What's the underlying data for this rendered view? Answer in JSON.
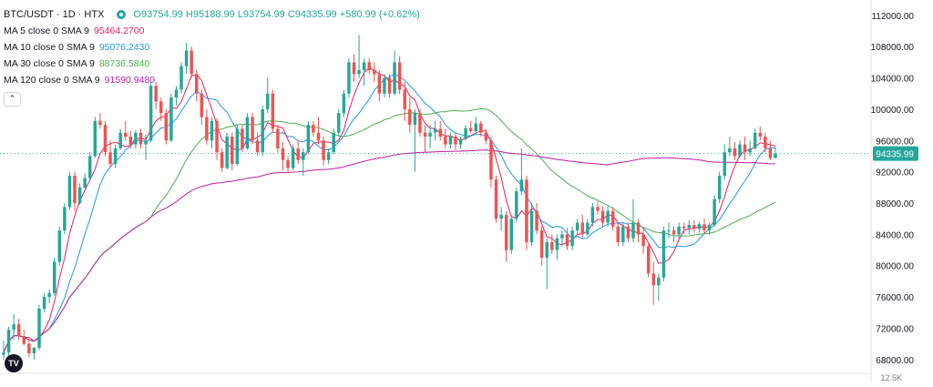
{
  "header": {
    "symbol": "BTC/USDT · 1D · HTX",
    "ohlc": "O93754.99 H95188.99 L93754.99 C94335.99 +580.99 (+0.62%)"
  },
  "indicators": [
    {
      "label": "MA 5 close 0 SMA 9",
      "value": "95464.2700",
      "color": "#e91e63"
    },
    {
      "label": "MA 10 close 0 SMA 9",
      "value": "95076.2430",
      "color": "#2196f3"
    },
    {
      "label": "MA 30 close 0 SMA 9",
      "value": "88736.5840",
      "color": "#4caf50"
    },
    {
      "label": "MA 120 close 0 SMA 9",
      "value": "91590.9480",
      "color": "#ba1fa3"
    }
  ],
  "collapse_icon": "chevron-up-icon",
  "logo_text": "TV",
  "price_label": "94335.99",
  "bottom_axis_label": "12.5K",
  "colors": {
    "up": "#26a69a",
    "down": "#ef5350",
    "ma5": "#e91e63",
    "ma10": "#2196f3",
    "ma30": "#4caf50",
    "ma120": "#ba1fa3",
    "price_line": "#26a69a"
  },
  "chart_data": {
    "type": "candlestick",
    "y_axis": {
      "ticks": [
        68000,
        72000,
        76000,
        80000,
        84000,
        88000,
        92000,
        96000,
        100000,
        104000,
        108000,
        112000
      ],
      "tick_labels": [
        "68000.00",
        "72000.00",
        "76000.00",
        "80000.00",
        "84000.00",
        "88000.00",
        "92000.00",
        "96000.00",
        "100000.00",
        "104000.00",
        "108000.00",
        "112000.00"
      ],
      "range": [
        66000,
        113500
      ],
      "grid": false
    },
    "last_close": 94335.99,
    "candles": [
      {
        "o": 68600,
        "h": 70400,
        "l": 68000,
        "c": 68900
      },
      {
        "o": 68900,
        "h": 72200,
        "l": 68500,
        "c": 71800
      },
      {
        "o": 71800,
        "h": 73800,
        "l": 70600,
        "c": 72500
      },
      {
        "o": 72500,
        "h": 73200,
        "l": 70500,
        "c": 71000
      },
      {
        "o": 71000,
        "h": 71800,
        "l": 69800,
        "c": 70000
      },
      {
        "o": 70000,
        "h": 70500,
        "l": 68300,
        "c": 68800
      },
      {
        "o": 68800,
        "h": 69600,
        "l": 68000,
        "c": 69500
      },
      {
        "o": 69500,
        "h": 75000,
        "l": 69200,
        "c": 74500
      },
      {
        "o": 74500,
        "h": 76500,
        "l": 74000,
        "c": 76000
      },
      {
        "o": 76000,
        "h": 77000,
        "l": 75200,
        "c": 76500
      },
      {
        "o": 76500,
        "h": 81000,
        "l": 76200,
        "c": 80500
      },
      {
        "o": 80500,
        "h": 85000,
        "l": 80000,
        "c": 84500
      },
      {
        "o": 84500,
        "h": 88000,
        "l": 84000,
        "c": 87500
      },
      {
        "o": 87500,
        "h": 92000,
        "l": 87200,
        "c": 91500
      },
      {
        "o": 91500,
        "h": 92000,
        "l": 87000,
        "c": 88000
      },
      {
        "o": 88000,
        "h": 90500,
        "l": 87800,
        "c": 90000
      },
      {
        "o": 90000,
        "h": 91800,
        "l": 89800,
        "c": 91200
      },
      {
        "o": 91200,
        "h": 94500,
        "l": 91000,
        "c": 94000
      },
      {
        "o": 94000,
        "h": 99000,
        "l": 93800,
        "c": 98500
      },
      {
        "o": 98500,
        "h": 99500,
        "l": 97500,
        "c": 98000
      },
      {
        "o": 98000,
        "h": 98500,
        "l": 94000,
        "c": 94500
      },
      {
        "o": 94500,
        "h": 96000,
        "l": 92500,
        "c": 93000
      },
      {
        "o": 93000,
        "h": 95500,
        "l": 92500,
        "c": 95000
      },
      {
        "o": 95000,
        "h": 97500,
        "l": 94800,
        "c": 97000
      },
      {
        "o": 97000,
        "h": 98500,
        "l": 96000,
        "c": 96500
      },
      {
        "o": 96500,
        "h": 97200,
        "l": 95000,
        "c": 95500
      },
      {
        "o": 95500,
        "h": 97300,
        "l": 95000,
        "c": 97000
      },
      {
        "o": 97000,
        "h": 97500,
        "l": 95000,
        "c": 95500
      },
      {
        "o": 95500,
        "h": 96800,
        "l": 93500,
        "c": 96000
      },
      {
        "o": 96000,
        "h": 103500,
        "l": 95800,
        "c": 103000
      },
      {
        "o": 103000,
        "h": 103500,
        "l": 100000,
        "c": 101000
      },
      {
        "o": 101000,
        "h": 101500,
        "l": 98500,
        "c": 99500
      },
      {
        "o": 99500,
        "h": 100000,
        "l": 95500,
        "c": 96000
      },
      {
        "o": 96000,
        "h": 102000,
        "l": 95800,
        "c": 101500
      },
      {
        "o": 101500,
        "h": 103000,
        "l": 100500,
        "c": 102500
      },
      {
        "o": 102500,
        "h": 106000,
        "l": 102000,
        "c": 105500
      },
      {
        "o": 105500,
        "h": 108500,
        "l": 104500,
        "c": 107500
      },
      {
        "o": 107500,
        "h": 108000,
        "l": 104000,
        "c": 104500
      },
      {
        "o": 104500,
        "h": 105000,
        "l": 101000,
        "c": 102000
      },
      {
        "o": 102000,
        "h": 102500,
        "l": 98000,
        "c": 99000
      },
      {
        "o": 99000,
        "h": 100000,
        "l": 95500,
        "c": 96000
      },
      {
        "o": 96000,
        "h": 99000,
        "l": 95000,
        "c": 98500
      },
      {
        "o": 98500,
        "h": 98800,
        "l": 93500,
        "c": 94500
      },
      {
        "o": 94500,
        "h": 95000,
        "l": 92000,
        "c": 92500
      },
      {
        "o": 92500,
        "h": 97000,
        "l": 92300,
        "c": 96500
      },
      {
        "o": 96500,
        "h": 97000,
        "l": 92200,
        "c": 93000
      },
      {
        "o": 93000,
        "h": 98000,
        "l": 92800,
        "c": 97500
      },
      {
        "o": 97500,
        "h": 98000,
        "l": 94500,
        "c": 95000
      },
      {
        "o": 95000,
        "h": 99500,
        "l": 94800,
        "c": 99000
      },
      {
        "o": 99000,
        "h": 99500,
        "l": 95500,
        "c": 96000
      },
      {
        "o": 96000,
        "h": 97000,
        "l": 94000,
        "c": 94500
      },
      {
        "o": 94500,
        "h": 100500,
        "l": 94000,
        "c": 100000
      },
      {
        "o": 100000,
        "h": 104000,
        "l": 99500,
        "c": 102000
      },
      {
        "o": 102000,
        "h": 102500,
        "l": 97000,
        "c": 97500
      },
      {
        "o": 97500,
        "h": 98000,
        "l": 94500,
        "c": 95000
      },
      {
        "o": 95000,
        "h": 95800,
        "l": 92200,
        "c": 93500
      },
      {
        "o": 93500,
        "h": 94000,
        "l": 91800,
        "c": 92500
      },
      {
        "o": 92500,
        "h": 95500,
        "l": 92200,
        "c": 95000
      },
      {
        "o": 95000,
        "h": 96000,
        "l": 93000,
        "c": 93500
      },
      {
        "o": 93500,
        "h": 95000,
        "l": 91500,
        "c": 94500
      },
      {
        "o": 94500,
        "h": 98500,
        "l": 94200,
        "c": 98000
      },
      {
        "o": 98000,
        "h": 98500,
        "l": 96500,
        "c": 97000
      },
      {
        "o": 97000,
        "h": 99000,
        "l": 95500,
        "c": 96000
      },
      {
        "o": 96000,
        "h": 96500,
        "l": 92800,
        "c": 93500
      },
      {
        "o": 93500,
        "h": 95000,
        "l": 93000,
        "c": 94500
      },
      {
        "o": 94500,
        "h": 97500,
        "l": 94200,
        "c": 97000
      },
      {
        "o": 97000,
        "h": 100000,
        "l": 96500,
        "c": 99500
      },
      {
        "o": 99500,
        "h": 102500,
        "l": 99000,
        "c": 102000
      },
      {
        "o": 102000,
        "h": 106500,
        "l": 101500,
        "c": 106000
      },
      {
        "o": 106000,
        "h": 107000,
        "l": 103500,
        "c": 104500
      },
      {
        "o": 104500,
        "h": 109500,
        "l": 104000,
        "c": 105000
      },
      {
        "o": 105000,
        "h": 106500,
        "l": 103000,
        "c": 106000
      },
      {
        "o": 106000,
        "h": 106500,
        "l": 104500,
        "c": 105000
      },
      {
        "o": 105000,
        "h": 106000,
        "l": 103500,
        "c": 104500
      },
      {
        "o": 104500,
        "h": 105000,
        "l": 101000,
        "c": 102000
      },
      {
        "o": 102000,
        "h": 104500,
        "l": 101500,
        "c": 104000
      },
      {
        "o": 104000,
        "h": 104500,
        "l": 101500,
        "c": 102000
      },
      {
        "o": 102000,
        "h": 107500,
        "l": 101800,
        "c": 106000
      },
      {
        "o": 106000,
        "h": 106800,
        "l": 102000,
        "c": 102500
      },
      {
        "o": 102500,
        "h": 103500,
        "l": 98500,
        "c": 100000
      },
      {
        "o": 100000,
        "h": 101500,
        "l": 97000,
        "c": 98000
      },
      {
        "o": 98000,
        "h": 100000,
        "l": 92000,
        "c": 99500
      },
      {
        "o": 99500,
        "h": 100000,
        "l": 96500,
        "c": 97000
      },
      {
        "o": 97000,
        "h": 98000,
        "l": 94500,
        "c": 96500
      },
      {
        "o": 96500,
        "h": 98000,
        "l": 95000,
        "c": 97000
      },
      {
        "o": 97000,
        "h": 98500,
        "l": 96000,
        "c": 97500
      },
      {
        "o": 97500,
        "h": 98500,
        "l": 96000,
        "c": 96500
      },
      {
        "o": 96500,
        "h": 97500,
        "l": 95000,
        "c": 95500
      },
      {
        "o": 95500,
        "h": 97000,
        "l": 95000,
        "c": 96500
      },
      {
        "o": 96500,
        "h": 97000,
        "l": 94800,
        "c": 95500
      },
      {
        "o": 95500,
        "h": 96500,
        "l": 95000,
        "c": 96200
      },
      {
        "o": 96200,
        "h": 98000,
        "l": 96000,
        "c": 97600
      },
      {
        "o": 97600,
        "h": 98500,
        "l": 97000,
        "c": 97200
      },
      {
        "o": 97200,
        "h": 99000,
        "l": 96800,
        "c": 98200
      },
      {
        "o": 98200,
        "h": 98500,
        "l": 96500,
        "c": 97000
      },
      {
        "o": 97000,
        "h": 97500,
        "l": 95500,
        "c": 96000
      },
      {
        "o": 96000,
        "h": 96500,
        "l": 90000,
        "c": 91000
      },
      {
        "o": 91000,
        "h": 91500,
        "l": 85500,
        "c": 86000
      },
      {
        "o": 86000,
        "h": 87500,
        "l": 84500,
        "c": 86500
      },
      {
        "o": 86500,
        "h": 87000,
        "l": 80500,
        "c": 82000
      },
      {
        "o": 82000,
        "h": 86500,
        "l": 81500,
        "c": 86000
      },
      {
        "o": 86000,
        "h": 90000,
        "l": 85500,
        "c": 89500
      },
      {
        "o": 89500,
        "h": 95000,
        "l": 89000,
        "c": 91000
      },
      {
        "o": 91000,
        "h": 91500,
        "l": 82000,
        "c": 83000
      },
      {
        "o": 83000,
        "h": 88000,
        "l": 82500,
        "c": 87000
      },
      {
        "o": 87000,
        "h": 88000,
        "l": 84000,
        "c": 84500
      },
      {
        "o": 84500,
        "h": 85000,
        "l": 80000,
        "c": 81000
      },
      {
        "o": 81000,
        "h": 83500,
        "l": 77000,
        "c": 83000
      },
      {
        "o": 83000,
        "h": 84000,
        "l": 81500,
        "c": 82000
      },
      {
        "o": 82000,
        "h": 84000,
        "l": 80800,
        "c": 83500
      },
      {
        "o": 83500,
        "h": 84500,
        "l": 82500,
        "c": 84000
      },
      {
        "o": 84000,
        "h": 84800,
        "l": 82000,
        "c": 82500
      },
      {
        "o": 82500,
        "h": 85000,
        "l": 82000,
        "c": 84500
      },
      {
        "o": 84500,
        "h": 86000,
        "l": 84000,
        "c": 85500
      },
      {
        "o": 85500,
        "h": 86500,
        "l": 83500,
        "c": 84000
      },
      {
        "o": 84000,
        "h": 86000,
        "l": 83800,
        "c": 85500
      },
      {
        "o": 85500,
        "h": 88000,
        "l": 85000,
        "c": 87500
      },
      {
        "o": 87500,
        "h": 88200,
        "l": 86500,
        "c": 87000
      },
      {
        "o": 87000,
        "h": 87600,
        "l": 85000,
        "c": 85500
      },
      {
        "o": 85500,
        "h": 87600,
        "l": 85000,
        "c": 87000
      },
      {
        "o": 87000,
        "h": 87500,
        "l": 84500,
        "c": 85000
      },
      {
        "o": 85000,
        "h": 85500,
        "l": 82500,
        "c": 83000
      },
      {
        "o": 83000,
        "h": 85500,
        "l": 82500,
        "c": 85000
      },
      {
        "o": 85000,
        "h": 85500,
        "l": 83000,
        "c": 83500
      },
      {
        "o": 83500,
        "h": 88500,
        "l": 83000,
        "c": 85500
      },
      {
        "o": 85500,
        "h": 86000,
        "l": 83000,
        "c": 84000
      },
      {
        "o": 84000,
        "h": 85000,
        "l": 81500,
        "c": 82500
      },
      {
        "o": 82500,
        "h": 83000,
        "l": 78500,
        "c": 79000
      },
      {
        "o": 79000,
        "h": 80500,
        "l": 75000,
        "c": 77500
      },
      {
        "o": 77500,
        "h": 79000,
        "l": 75500,
        "c": 78500
      },
      {
        "o": 78500,
        "h": 85000,
        "l": 78000,
        "c": 84500
      },
      {
        "o": 84500,
        "h": 85500,
        "l": 83500,
        "c": 84500
      },
      {
        "o": 84500,
        "h": 85000,
        "l": 83000,
        "c": 84000
      },
      {
        "o": 84000,
        "h": 85500,
        "l": 83500,
        "c": 85000
      },
      {
        "o": 85000,
        "h": 85500,
        "l": 84000,
        "c": 84800
      },
      {
        "o": 84800,
        "h": 85800,
        "l": 84000,
        "c": 85200
      },
      {
        "o": 85200,
        "h": 85800,
        "l": 84200,
        "c": 84700
      },
      {
        "o": 84700,
        "h": 85600,
        "l": 84200,
        "c": 85300
      },
      {
        "o": 85300,
        "h": 86000,
        "l": 84000,
        "c": 84500
      },
      {
        "o": 84500,
        "h": 85500,
        "l": 84000,
        "c": 85200
      },
      {
        "o": 85200,
        "h": 89000,
        "l": 85000,
        "c": 88500
      },
      {
        "o": 88500,
        "h": 92000,
        "l": 88000,
        "c": 91500
      },
      {
        "o": 91500,
        "h": 95500,
        "l": 91000,
        "c": 94500
      },
      {
        "o": 94500,
        "h": 96500,
        "l": 94000,
        "c": 95000
      },
      {
        "o": 95000,
        "h": 95800,
        "l": 93500,
        "c": 94000
      },
      {
        "o": 94000,
        "h": 96000,
        "l": 93800,
        "c": 95500
      },
      {
        "o": 95500,
        "h": 96500,
        "l": 93500,
        "c": 94500
      },
      {
        "o": 94500,
        "h": 96000,
        "l": 94000,
        "c": 95000
      },
      {
        "o": 95000,
        "h": 97500,
        "l": 94800,
        "c": 97000
      },
      {
        "o": 97000,
        "h": 97800,
        "l": 96000,
        "c": 96500
      },
      {
        "o": 96500,
        "h": 97000,
        "l": 94500,
        "c": 95000
      },
      {
        "o": 95000,
        "h": 96000,
        "l": 93500,
        "c": 93754.99
      },
      {
        "o": 93754.99,
        "h": 95188.99,
        "l": 93754.99,
        "c": 94335.99
      }
    ],
    "ma_series": [
      {
        "name": "MA 5",
        "period": 5,
        "color": "#e91e63"
      },
      {
        "name": "MA 10",
        "period": 10,
        "color": "#2196f3"
      },
      {
        "name": "MA 30",
        "period": 30,
        "color": "#4caf50"
      },
      {
        "name": "MA 120",
        "period": 120,
        "color": "#ba1fa3"
      }
    ]
  }
}
